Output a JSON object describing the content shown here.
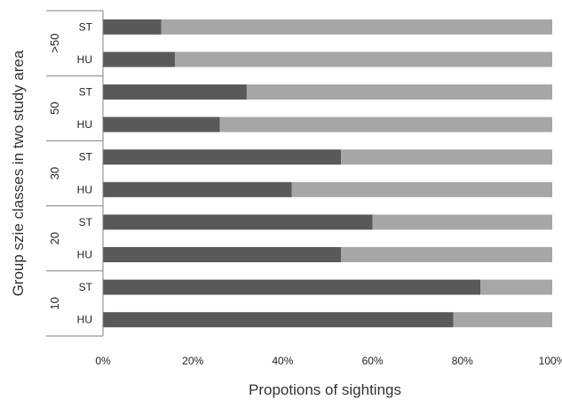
{
  "chart_data": {
    "type": "bar",
    "orientation": "horizontal",
    "stacked": true,
    "xlabel": "Propotions of sightings",
    "ylabel": "Group szie classes in two study area",
    "xlim": [
      0,
      100
    ],
    "x_ticks": [
      "0%",
      "20%",
      "40%",
      "60%",
      "80%",
      "100%"
    ],
    "groups": [
      "10",
      "20",
      "30",
      "50",
      ">50"
    ],
    "rows": [
      {
        "group": ">50",
        "area": "ST",
        "value": 13
      },
      {
        "group": ">50",
        "area": "HU",
        "value": 16
      },
      {
        "group": "50",
        "area": "ST",
        "value": 32
      },
      {
        "group": "50",
        "area": "HU",
        "value": 26
      },
      {
        "group": "30",
        "area": "ST",
        "value": 53
      },
      {
        "group": "30",
        "area": "HU",
        "value": 42
      },
      {
        "group": "20",
        "area": "ST",
        "value": 60
      },
      {
        "group": "20",
        "area": "HU",
        "value": 53
      },
      {
        "group": "10",
        "area": "ST",
        "value": 84
      },
      {
        "group": "10",
        "area": "HU",
        "value": 78
      }
    ],
    "colors": {
      "dark": "#595959",
      "light": "#a6a6a6",
      "axis": "#808080"
    },
    "grid": false,
    "legend": "none"
  }
}
